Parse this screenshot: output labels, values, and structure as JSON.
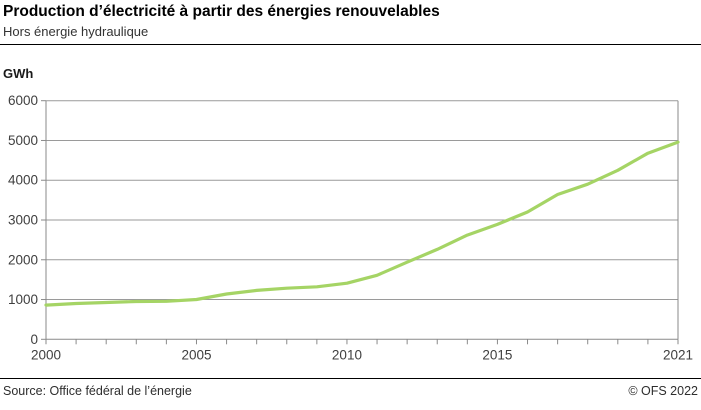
{
  "header": {
    "title": "Production d’électricité à partir des énergies renouvelables",
    "subtitle": "Hors énergie hydraulique"
  },
  "chart_data": {
    "type": "line",
    "title": "Production d’électricité à partir des énergies renouvelables",
    "subtitle": "Hors énergie hydraulique",
    "ylabel": "GWh",
    "xlabel": "",
    "x": [
      2000,
      2001,
      2002,
      2003,
      2004,
      2005,
      2006,
      2007,
      2008,
      2009,
      2010,
      2011,
      2012,
      2013,
      2014,
      2015,
      2016,
      2017,
      2018,
      2019,
      2020,
      2021
    ],
    "values": [
      860,
      900,
      925,
      950,
      955,
      1000,
      1140,
      1230,
      1285,
      1320,
      1410,
      1610,
      1940,
      2260,
      2620,
      2890,
      3200,
      3640,
      3900,
      4250,
      4680,
      4960
    ],
    "ylim": [
      0,
      6000
    ],
    "yticks": [
      0,
      1000,
      2000,
      3000,
      4000,
      5000,
      6000
    ],
    "xtick_labels": [
      2000,
      2005,
      2010,
      2015,
      2021
    ],
    "grid": true,
    "legend": "none",
    "line_color": "#a5d465",
    "grid_color": "#9a9a9a",
    "axis_color": "#8a8a8a",
    "tick_label_color": "#3f3f3f"
  },
  "footer": {
    "source": "Source: Office fédéral de l’énergie",
    "copyright": "© OFS 2022"
  }
}
